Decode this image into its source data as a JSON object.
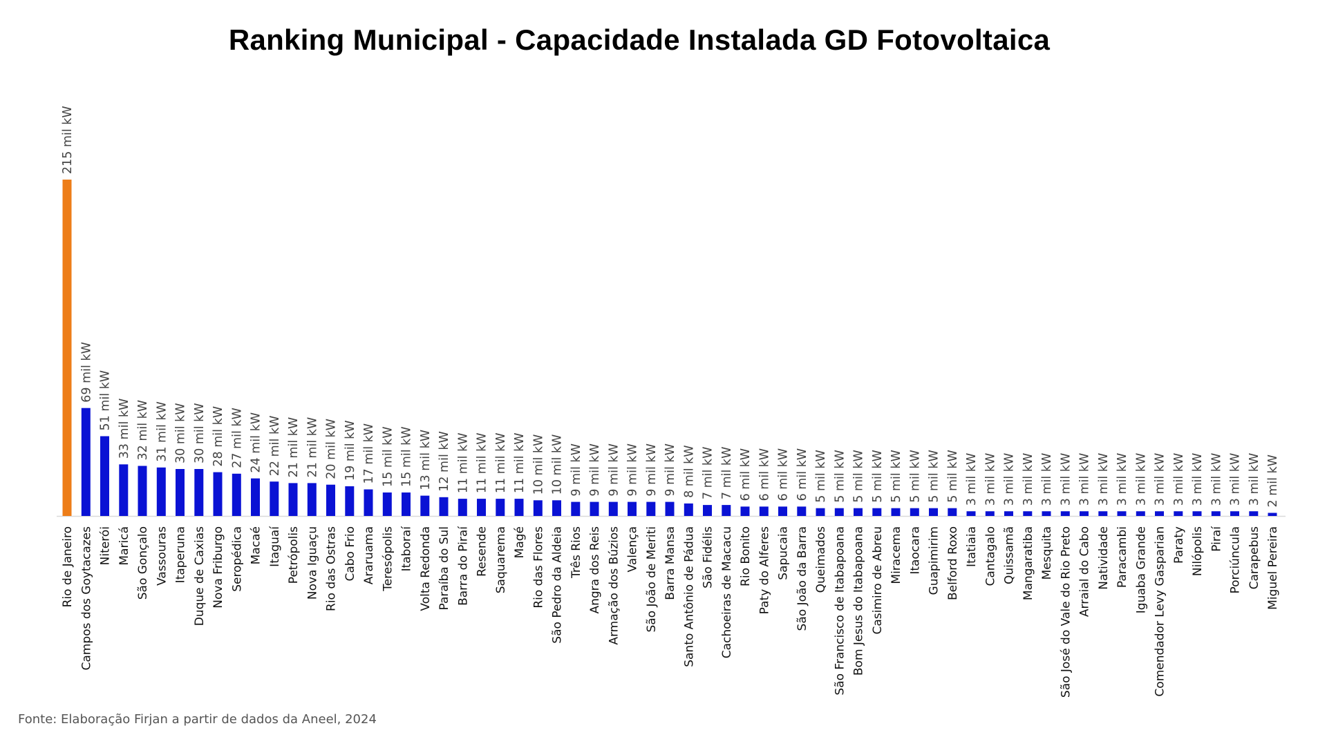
{
  "chart_data": {
    "type": "bar",
    "title": "Ranking Municipal  - Capacidade Instalada GD Fotovoltaica",
    "xlabel": "",
    "ylabel": "",
    "unit_suffix": " mil kW",
    "ylim": [
      0,
      215
    ],
    "grid": false,
    "legend": "none",
    "colors": {
      "highlight": "#ED7D18",
      "default": "#0A12D4",
      "axis": "#D9D9D9"
    },
    "categories": [
      "Rio de Janeiro",
      "Campos dos Goytacazes",
      "Niterói",
      "Maricá",
      "São Gonçalo",
      "Vassouras",
      "Itaperuna",
      "Duque de Caxias",
      "Nova Friburgo",
      "Seropédica",
      "Macaé",
      "Itaguaí",
      "Petrópolis",
      "Nova Iguaçu",
      "Rio das Ostras",
      "Cabo Frio",
      "Araruama",
      "Teresópolis",
      "Itaboraí",
      "Volta Redonda",
      "Paraíba do Sul",
      "Barra do Piraí",
      "Resende",
      "Saquarema",
      "Magé",
      "Rio das Flores",
      "São Pedro da Aldeia",
      "Três Rios",
      "Angra dos Reis",
      "Armação dos Búzios",
      "Valença",
      "São João de Meriti",
      "Barra Mansa",
      "Santo Antônio de Pádua",
      "São Fidélis",
      "Cachoeiras de Macacu",
      "Rio Bonito",
      "Paty do Alferes",
      "Sapucaia",
      "São João da Barra",
      "Queimados",
      "São Francisco de Itabapoana",
      "Bom Jesus do Itabapoana",
      "Casimiro de Abreu",
      "Miracema",
      "Itaocara",
      "Guapimirim",
      "Belford Roxo",
      "Itatiaia",
      "Cantagalo",
      "Quissamã",
      "Mangaratiba",
      "Mesquita",
      "São José do Vale do Rio Preto",
      "Arraial do Cabo",
      "Natividade",
      "Paracambi",
      "Iguaba Grande",
      "Comendador Levy Gasparian",
      "Paraty",
      "Nilópolis",
      "Piraí",
      "Porciúncula",
      "Carapebus",
      "Miguel Pereira"
    ],
    "values": [
      215,
      69,
      51,
      33,
      32,
      31,
      30,
      30,
      28,
      27,
      24,
      22,
      21,
      21,
      20,
      19,
      17,
      15,
      15,
      13,
      12,
      11,
      11,
      11,
      11,
      10,
      10,
      9,
      9,
      9,
      9,
      9,
      9,
      8,
      7,
      7,
      6,
      6,
      6,
      6,
      5,
      5,
      5,
      5,
      5,
      5,
      5,
      5,
      3,
      3,
      3,
      3,
      3,
      3,
      3,
      3,
      3,
      3,
      3,
      3,
      3,
      3,
      3,
      3,
      2
    ],
    "data_labels": [
      "215 mil kW",
      "69 mil kW",
      "51 mil kW",
      "33 mil kW",
      "32 mil kW",
      "31 mil kW",
      "30 mil kW",
      "30 mil kW",
      "28 mil kW",
      "27 mil kW",
      "24 mil kW",
      "22 mil kW",
      "21 mil kW",
      "21 mil kW",
      "20 mil kW",
      "19 mil kW",
      "17 mil kW",
      "15 mil kW",
      "15 mil kW",
      "13 mil kW",
      "12 mil kW",
      "11 mil kW",
      "11 mil kW",
      "11 mil kW",
      "11 mil kW",
      "10 mil kW",
      "10 mil kW",
      "9 mil kW",
      "9 mil kW",
      "9 mil kW",
      "9 mil kW",
      "9 mil kW",
      "9 mil kW",
      "8 mil kW",
      "7 mil kW",
      "7 mil kW",
      "6 mil kW",
      "6 mil kW",
      "6 mil kW",
      "6 mil kW",
      "5 mil kW",
      "5 mil kW",
      "5 mil kW",
      "5 mil kW",
      "5 mil kW",
      "5 mil kW",
      "5 mil kW",
      "5 mil kW",
      "3 mil kW",
      "3 mil kW",
      "3 mil kW",
      "3 mil kW",
      "3 mil kW",
      "3 mil kW",
      "3 mil kW",
      "3 mil kW",
      "3 mil kW",
      "3 mil kW",
      "3 mil kW",
      "3 mil kW",
      "3 mil kW",
      "3 mil kW",
      "3 mil kW",
      "3 mil kW",
      "2 mil kW"
    ],
    "highlight_index": 0,
    "source": "Fonte: Elaboração Firjan a partir de dados da Aneel, 2024"
  }
}
